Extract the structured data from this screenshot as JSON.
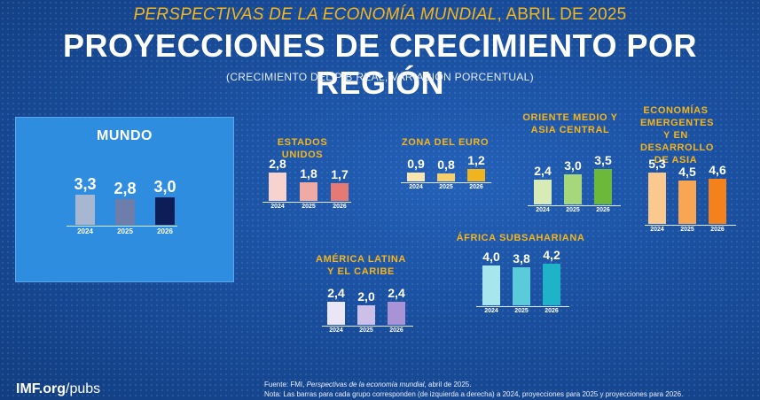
{
  "header": {
    "kicker_italic": "PERSPECTIVAS DE LA ECONOMÍA MUNDIAL",
    "kicker_rest": ", ABRIL DE 2025",
    "title": "PROYECCIONES DE CRECIMIENTO POR REGIÓN",
    "unit_note": "(CRECIMIENTO DEL PIB REAL, VARIACIÓN PORCENTUAL)"
  },
  "footer": {
    "logo_bold": "IMF.org",
    "logo_rest": "/pubs",
    "source_prefix": "Fuente: FMI, ",
    "source_italic": "Perspectivas de la economía mundial",
    "source_suffix": ", abril de 2025.",
    "note": "Nota: Las barras para cada grupo corresponden (de izquierda a derecha) a 2024, proyecciones para 2025 y proyecciones para 2026."
  },
  "chart_data": [
    {
      "type": "bar",
      "title": "MUNDO",
      "categories": [
        "2024",
        "2025",
        "2026"
      ],
      "values": [
        3.3,
        2.8,
        3.0
      ],
      "labels": [
        "3,3",
        "2,8",
        "3,0"
      ],
      "colors": [
        "#a7b6d1",
        "#6d7eab",
        "#0c1d57"
      ]
    },
    {
      "type": "bar",
      "title": "ESTADOS UNIDOS",
      "categories": [
        "2024",
        "2025",
        "2026"
      ],
      "values": [
        2.8,
        1.8,
        1.7
      ],
      "labels": [
        "2,8",
        "1,8",
        "1,7"
      ],
      "colors": [
        "#f7d2cf",
        "#f0aaa4",
        "#e47a73"
      ]
    },
    {
      "type": "bar",
      "title": "ZONA DEL EURO",
      "categories": [
        "2024",
        "2025",
        "2026"
      ],
      "values": [
        0.9,
        0.8,
        1.2
      ],
      "labels": [
        "0,9",
        "0,8",
        "1,2"
      ],
      "colors": [
        "#f8e5b0",
        "#f4cf6c",
        "#f0b41f"
      ]
    },
    {
      "type": "bar",
      "title": "ORIENTE MEDIO Y ASIA CENTRAL",
      "categories": [
        "2024",
        "2025",
        "2026"
      ],
      "values": [
        2.4,
        3.0,
        3.5
      ],
      "labels": [
        "2,4",
        "3,0",
        "3,5"
      ],
      "colors": [
        "#d6ebb6",
        "#a6d87b",
        "#6bb83a"
      ]
    },
    {
      "type": "bar",
      "title": "ECONOMÍAS EMERGENTES Y EN DESARROLLO DE ASIA",
      "categories": [
        "2024",
        "2025",
        "2026"
      ],
      "values": [
        5.3,
        4.5,
        4.6
      ],
      "labels": [
        "5,3",
        "4,5",
        "4,6"
      ],
      "colors": [
        "#fbc98d",
        "#f8a654",
        "#f3821c"
      ]
    },
    {
      "type": "bar",
      "title": "AMÉRICA LATINA Y EL CARIBE",
      "categories": [
        "2024",
        "2025",
        "2026"
      ],
      "values": [
        2.4,
        2.0,
        2.4
      ],
      "labels": [
        "2,4",
        "2,0",
        "2,4"
      ],
      "colors": [
        "#ebe6f6",
        "#ccc0e8",
        "#a893d6"
      ]
    },
    {
      "type": "bar",
      "title": "ÁFRICA SUBSAHARIANA",
      "categories": [
        "2024",
        "2025",
        "2026"
      ],
      "values": [
        4.0,
        3.8,
        4.2
      ],
      "labels": [
        "4,0",
        "3,8",
        "4,2"
      ],
      "colors": [
        "#a8e6ee",
        "#5ccbd9",
        "#1eb3c6"
      ]
    }
  ]
}
